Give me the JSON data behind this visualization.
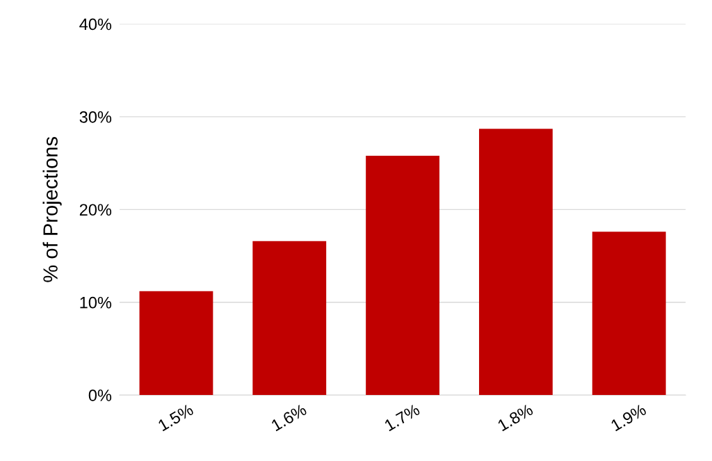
{
  "chart_data": {
    "type": "bar",
    "ylabel": "% of Projections",
    "categories": [
      "1.5%",
      "1.6%",
      "1.7%",
      "1.8%",
      "1.9%"
    ],
    "values": [
      11.2,
      16.6,
      25.8,
      28.7,
      17.6
    ],
    "color": "#c00000",
    "ylim": [
      0,
      40
    ],
    "yticks": [
      {
        "value": 0,
        "label": "0%"
      },
      {
        "value": 10,
        "label": "10%"
      },
      {
        "value": 20,
        "label": "20%"
      },
      {
        "value": 30,
        "label": "30%"
      },
      {
        "value": 40,
        "label": "40%"
      }
    ],
    "grid": "y",
    "legend": false
  }
}
